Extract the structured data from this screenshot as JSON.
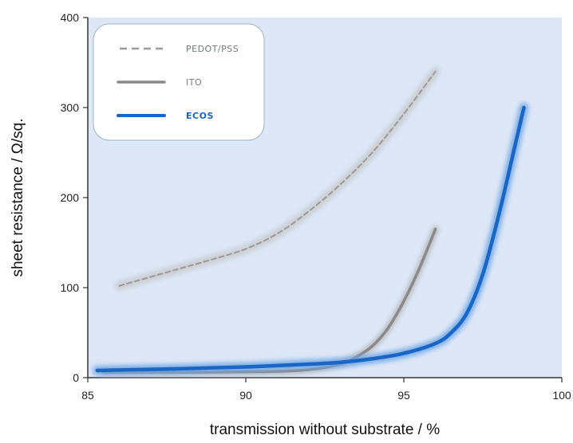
{
  "chart_data": {
    "type": "line",
    "title": "",
    "xlabel": "transmission without substrate / %",
    "ylabel": "sheet resistance / Ω/sq.",
    "xlim": [
      85,
      100
    ],
    "ylim": [
      0,
      400
    ],
    "xticks": [
      "85",
      "90",
      "95",
      "100"
    ],
    "yticks": [
      "0",
      "100",
      "200",
      "300",
      "400"
    ],
    "grid": false,
    "legend_position": "top-left",
    "background_color": "#dde7f6",
    "series": [
      {
        "name": "PEDOT/PSS",
        "style": "dashed",
        "color": "#9a9a9a",
        "glow_color": "#c9ccd1",
        "points": [
          [
            86,
            102
          ],
          [
            87,
            112
          ],
          [
            88,
            122
          ],
          [
            89,
            132
          ],
          [
            90,
            143
          ],
          [
            91,
            160
          ],
          [
            92,
            185
          ],
          [
            93,
            215
          ],
          [
            94,
            250
          ],
          [
            95,
            293
          ],
          [
            96,
            340
          ]
        ]
      },
      {
        "name": "ITO",
        "style": "solid",
        "color": "#8a8a8a",
        "glow_color": "#b6b8bc",
        "points": [
          [
            85.5,
            6
          ],
          [
            86,
            6
          ],
          [
            88,
            6
          ],
          [
            90,
            6.5
          ],
          [
            91,
            7
          ],
          [
            92,
            9
          ],
          [
            93,
            15
          ],
          [
            93.5,
            23
          ],
          [
            94,
            35
          ],
          [
            94.5,
            55
          ],
          [
            95,
            85
          ],
          [
            95.5,
            122
          ],
          [
            96,
            165
          ]
        ]
      },
      {
        "name": "ECOS",
        "style": "solid",
        "color": "#1a66c4",
        "glow_color": "#6fa6e6",
        "points": [
          [
            85.3,
            8
          ],
          [
            86,
            8.5
          ],
          [
            88,
            10
          ],
          [
            90,
            12
          ],
          [
            92,
            15
          ],
          [
            93,
            17
          ],
          [
            94,
            21
          ],
          [
            95,
            27
          ],
          [
            96,
            38
          ],
          [
            96.5,
            50
          ],
          [
            97,
            72
          ],
          [
            97.5,
            115
          ],
          [
            98,
            180
          ],
          [
            98.5,
            255
          ],
          [
            98.8,
            300
          ]
        ]
      }
    ]
  },
  "legend": {
    "items": [
      {
        "label": "PEDOT/PSS"
      },
      {
        "label": "ITO"
      },
      {
        "label": "ECOS"
      }
    ]
  }
}
